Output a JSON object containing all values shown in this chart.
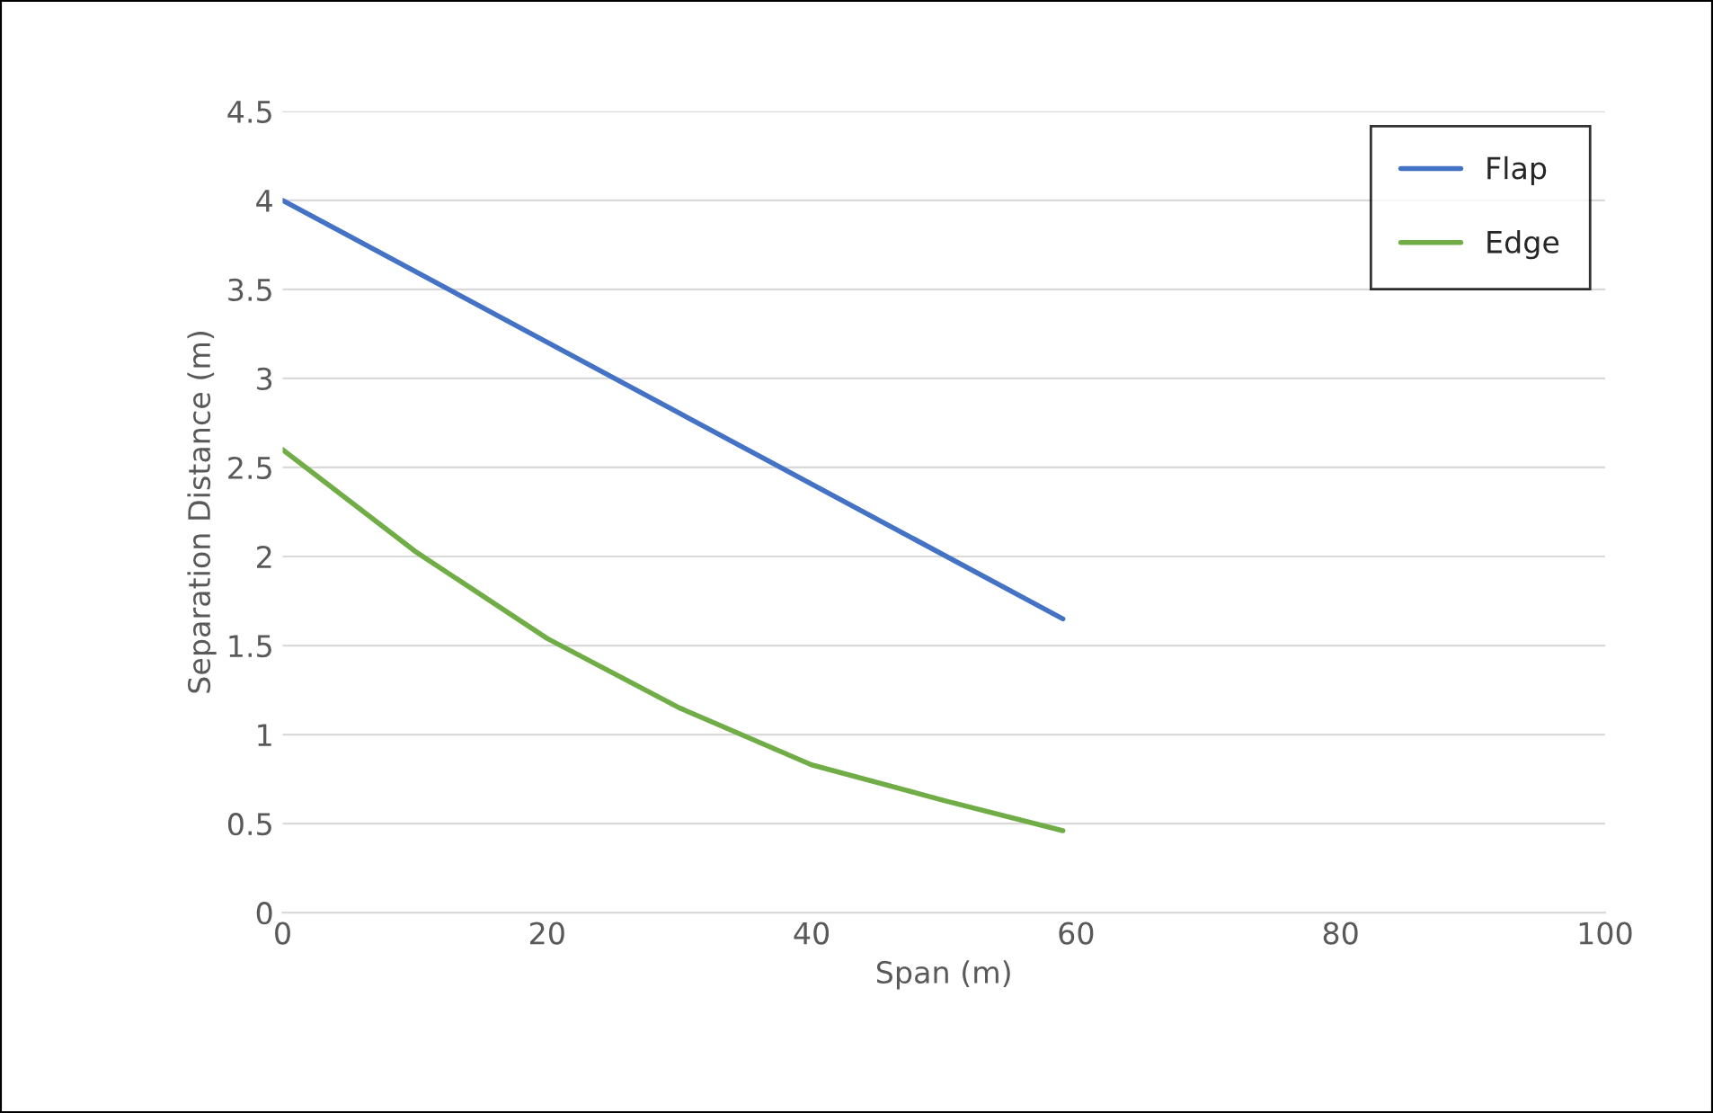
{
  "chart_data": {
    "type": "line",
    "xlabel": "Span (m)",
    "ylabel": "Separation Distance (m)",
    "xlim": [
      0,
      100
    ],
    "xticks": [
      0,
      20,
      40,
      60,
      80,
      100
    ],
    "ylim": [
      0,
      4.5
    ],
    "yticks": [
      0,
      0.5,
      1,
      1.5,
      2,
      2.5,
      3,
      3.5,
      4,
      4.5
    ],
    "grid": "y",
    "legend": "top right",
    "marker": "none",
    "line_style": "solid",
    "series": [
      {
        "name": "Flap",
        "color": "#4472c4",
        "x": [
          0,
          59
        ],
        "values": [
          4.0,
          1.65
        ]
      },
      {
        "name": "Edge",
        "color": "#70ad47",
        "x": [
          0,
          10,
          20,
          30,
          40,
          50,
          59
        ],
        "values": [
          2.6,
          2.03,
          1.54,
          1.15,
          0.83,
          0.63,
          0.46
        ]
      }
    ]
  }
}
